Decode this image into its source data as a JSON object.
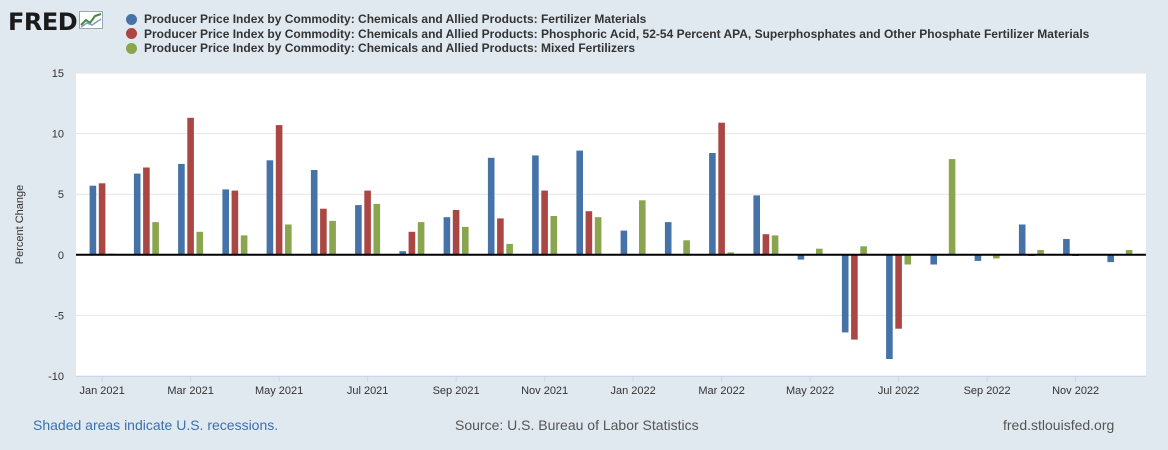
{
  "branding": {
    "logo_text": "FRED",
    "logo_icon": "line-graph-icon"
  },
  "colors": {
    "series1": "#4572a7",
    "series2": "#aa4643",
    "series3": "#89a54e",
    "background": "#e1e9f0",
    "plot_bg": "#ffffff",
    "grid": "#e6e6e6",
    "footer_link": "#3a6fb0"
  },
  "chart_data": {
    "type": "bar",
    "title": "",
    "xlabel": "",
    "ylabel": "Percent Change",
    "ylim": [
      -10,
      15
    ],
    "yticks": [
      -10,
      -5,
      0,
      5,
      10,
      15
    ],
    "grid": true,
    "legend_position": "top",
    "categories": [
      "Jan 2021",
      "Feb 2021",
      "Mar 2021",
      "Apr 2021",
      "May 2021",
      "Jun 2021",
      "Jul 2021",
      "Aug 2021",
      "Sep 2021",
      "Oct 2021",
      "Nov 2021",
      "Dec 2021",
      "Jan 2022",
      "Feb 2022",
      "Mar 2022",
      "Apr 2022",
      "May 2022",
      "Jun 2022",
      "Jul 2022",
      "Aug 2022",
      "Sep 2022",
      "Oct 2022",
      "Nov 2022",
      "Dec 2022"
    ],
    "tick_labels": [
      "Jan 2021",
      "",
      "Mar 2021",
      "",
      "May 2021",
      "",
      "Jul 2021",
      "",
      "Sep 2021",
      "",
      "Nov 2021",
      "",
      "Jan 2022",
      "",
      "Mar 2022",
      "",
      "May 2022",
      "",
      "Jul 2022",
      "",
      "Sep 2022",
      "",
      "Nov 2022",
      ""
    ],
    "series": [
      {
        "name": "Producer Price Index by Commodity: Chemicals and Allied Products: Fertilizer Materials",
        "values": [
          5.7,
          6.7,
          7.5,
          5.4,
          7.8,
          7.0,
          4.1,
          0.3,
          3.1,
          8.0,
          8.2,
          8.6,
          2.0,
          2.7,
          8.4,
          4.9,
          -0.4,
          -6.4,
          -8.6,
          -0.8,
          -0.5,
          2.5,
          1.3,
          -0.6
        ]
      },
      {
        "name": "Producer Price Index by Commodity: Chemicals and Allied Products: Phosphoric Acid, 52-54 Percent APA, Superphosphates and Other Phosphate Fertilizer Materials",
        "values": [
          5.9,
          7.2,
          11.3,
          5.3,
          10.7,
          3.8,
          5.3,
          1.9,
          3.7,
          3.0,
          5.3,
          3.6,
          0.0,
          0.0,
          10.9,
          1.7,
          0.0,
          -7.0,
          -6.1,
          0.0,
          0.0,
          -0.1,
          -0.1,
          0.0
        ]
      },
      {
        "name": "Producer Price Index by Commodity: Chemicals and Allied Products: Mixed Fertilizers",
        "values": [
          0.1,
          2.7,
          1.9,
          1.6,
          2.5,
          2.8,
          4.2,
          2.7,
          2.3,
          0.9,
          3.2,
          3.1,
          4.5,
          1.2,
          0.2,
          1.6,
          0.5,
          0.7,
          -0.8,
          7.9,
          -0.3,
          0.4,
          0.0,
          0.4
        ]
      }
    ]
  },
  "footer": {
    "recession_note": "Shaded areas indicate U.S. recessions.",
    "source": "Source: U.S. Bureau of Labor Statistics",
    "site": "fred.stlouisfed.org"
  }
}
